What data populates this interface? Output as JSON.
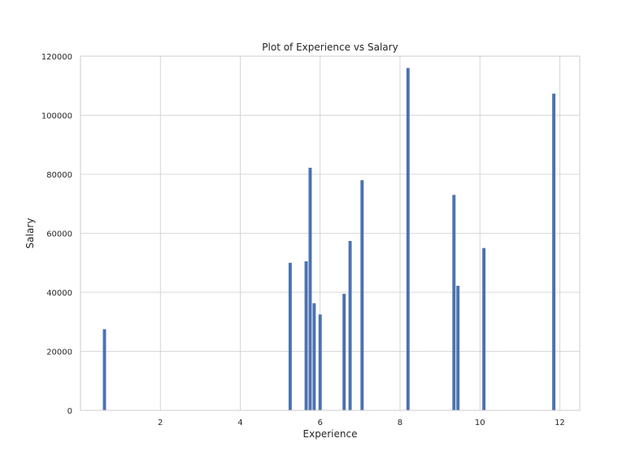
{
  "chart_data": {
    "type": "bar",
    "title": "Plot of Experience vs Salary",
    "xlabel": "Experience",
    "ylabel": "Salary",
    "xlim": [
      0.0,
      12.5
    ],
    "ylim": [
      0,
      120000
    ],
    "xticks": [
      2,
      4,
      6,
      8,
      10,
      12
    ],
    "yticks": [
      0,
      20000,
      40000,
      60000,
      80000,
      100000,
      120000
    ],
    "grid": true,
    "bar_color": "#4c72b0",
    "bar_width": 0.08,
    "x": [
      0.6,
      5.25,
      5.65,
      5.75,
      5.85,
      6.0,
      6.6,
      6.75,
      7.05,
      8.2,
      9.35,
      9.45,
      10.1,
      11.85
    ],
    "values": [
      27500,
      50000,
      50500,
      82200,
      36300,
      32500,
      39500,
      57400,
      78000,
      116000,
      73000,
      42200,
      55000,
      107300
    ]
  }
}
